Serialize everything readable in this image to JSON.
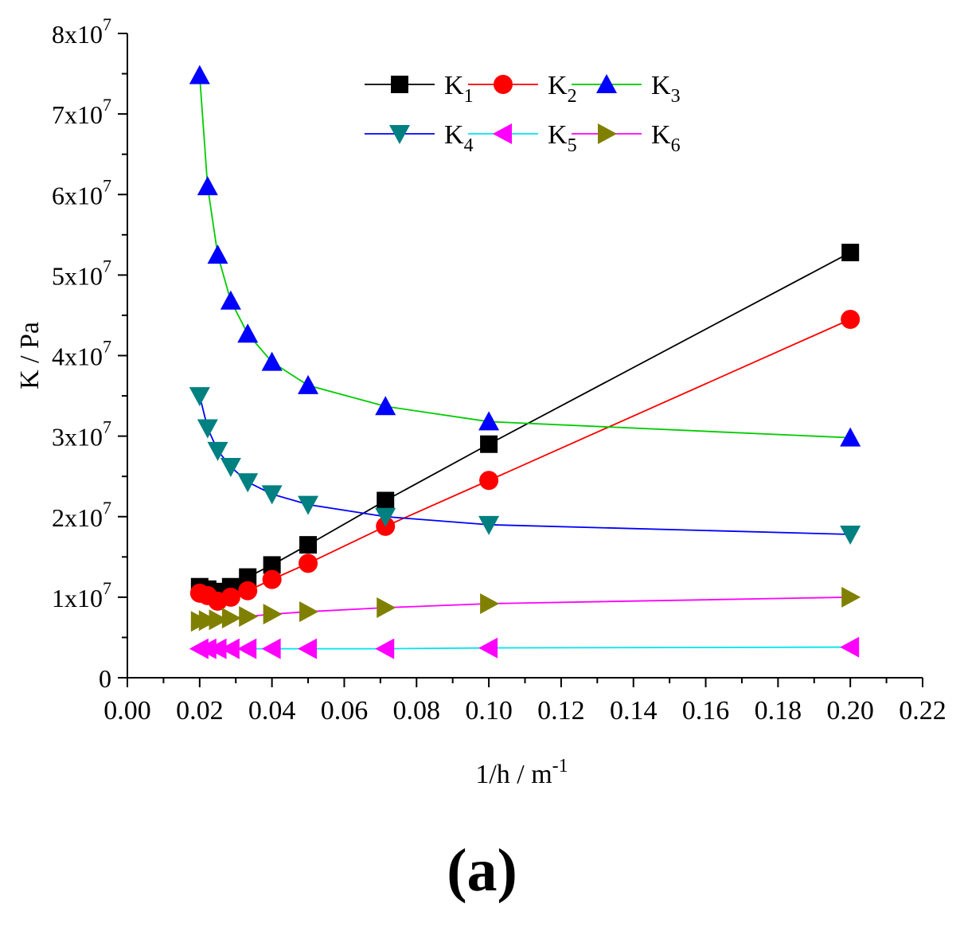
{
  "chart_data": {
    "type": "line",
    "xlabel": "1/h / m",
    "xlabel_sup": "-1",
    "ylabel": "K / Pa",
    "xlim": [
      0,
      0.22
    ],
    "ylim": [
      0,
      80000000
    ],
    "x_ticks": [
      "0.00",
      "0.02",
      "0.04",
      "0.06",
      "0.08",
      "0.10",
      "0.12",
      "0.14",
      "0.16",
      "0.18",
      "0.20",
      "0.22"
    ],
    "y_ticks": [
      {
        "value": 0,
        "base": "0",
        "exp": ""
      },
      {
        "value": 10000000,
        "base": "1x10",
        "exp": "7"
      },
      {
        "value": 20000000,
        "base": "2x10",
        "exp": "7"
      },
      {
        "value": 30000000,
        "base": "3x10",
        "exp": "7"
      },
      {
        "value": 40000000,
        "base": "4x10",
        "exp": "7"
      },
      {
        "value": 50000000,
        "base": "5x10",
        "exp": "7"
      },
      {
        "value": 60000000,
        "base": "6x10",
        "exp": "7"
      },
      {
        "value": 70000000,
        "base": "7x10",
        "exp": "7"
      },
      {
        "value": 80000000,
        "base": "8x10",
        "exp": "7"
      }
    ],
    "x": [
      0.02,
      0.0222,
      0.025,
      0.0286,
      0.0333,
      0.04,
      0.05,
      0.0714,
      0.1,
      0.2
    ],
    "legend_position": "top-center",
    "series": [
      {
        "name": "K",
        "sub": "1",
        "marker": "square",
        "line_color": "#000000",
        "marker_color": "#000000",
        "values": [
          11300000,
          11000000,
          10700000,
          11300000,
          12500000,
          14000000,
          16500000,
          22000000,
          29000000,
          52800000
        ]
      },
      {
        "name": "K",
        "sub": "2",
        "marker": "circle",
        "line_color": "#ff0000",
        "marker_color": "#ff0000",
        "values": [
          10500000,
          10200000,
          9500000,
          10000000,
          10800000,
          12200000,
          14200000,
          18800000,
          24500000,
          44500000
        ]
      },
      {
        "name": "K",
        "sub": "3",
        "marker": "triangle-up",
        "line_color": "#00cc00",
        "marker_color": "#0000ff",
        "values": [
          74800000,
          61000000,
          52500000,
          46800000,
          42700000,
          39200000,
          36300000,
          33700000,
          31800000,
          29800000
        ]
      },
      {
        "name": "K",
        "sub": "4",
        "marker": "triangle-down",
        "line_color": "#0000ff",
        "marker_color": "#008080",
        "values": [
          35000000,
          31000000,
          28200000,
          26200000,
          24300000,
          22800000,
          21500000,
          20000000,
          19000000,
          17800000
        ]
      },
      {
        "name": "K",
        "sub": "5",
        "marker": "triangle-left",
        "line_color": "#00e5ee",
        "marker_color": "#ff00ff",
        "values": [
          3600000,
          3600000,
          3600000,
          3600000,
          3600000,
          3600000,
          3600000,
          3600000,
          3700000,
          3800000
        ]
      },
      {
        "name": "K",
        "sub": "6",
        "marker": "triangle-right",
        "line_color": "#ff00ff",
        "marker_color": "#808000",
        "values": [
          7000000,
          7100000,
          7200000,
          7400000,
          7600000,
          7900000,
          8200000,
          8700000,
          9200000,
          10000000
        ]
      }
    ]
  },
  "panel_label": "(a)"
}
